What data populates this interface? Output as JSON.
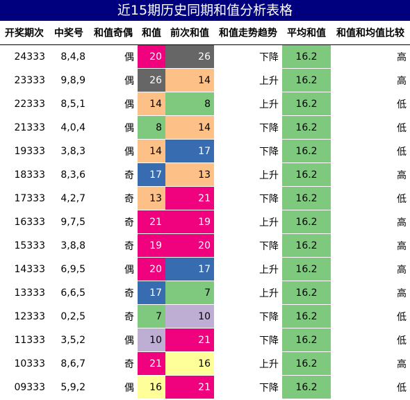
{
  "title": "近15期历史同期和值分析表格",
  "headers": [
    "开奖期次",
    "中奖号",
    "和值奇偶",
    "和值",
    "前次和值",
    "和值走势趋势",
    "平均和值",
    "和值和均值比较"
  ],
  "palette": {
    "7": "#7fc97f",
    "8": "#7fc97f",
    "10": "#beaed4",
    "13": "#fdc086",
    "14": "#fdc086",
    "16": "#ffff99",
    "17": "#386cb0",
    "19": "#f0027f",
    "20": "#f0027f",
    "21": "#f0027f",
    "26": "#666666"
  },
  "dark_values": [
    "17",
    "19",
    "20",
    "21",
    "26"
  ],
  "rows": [
    {
      "issue": "24333",
      "numbers": "8,4,8",
      "parity": "偶",
      "sum": "20",
      "prev_sum": "26",
      "trend": "下降",
      "avg": "16.2",
      "compare": "高"
    },
    {
      "issue": "23333",
      "numbers": "9,8,9",
      "parity": "偶",
      "sum": "26",
      "prev_sum": "14",
      "trend": "上升",
      "avg": "16.2",
      "compare": "高"
    },
    {
      "issue": "22333",
      "numbers": "8,5,1",
      "parity": "偶",
      "sum": "14",
      "prev_sum": "8",
      "trend": "上升",
      "avg": "16.2",
      "compare": "低"
    },
    {
      "issue": "21333",
      "numbers": "4,0,4",
      "parity": "偶",
      "sum": "8",
      "prev_sum": "14",
      "trend": "下降",
      "avg": "16.2",
      "compare": "低"
    },
    {
      "issue": "19333",
      "numbers": "3,8,3",
      "parity": "偶",
      "sum": "14",
      "prev_sum": "17",
      "trend": "下降",
      "avg": "16.2",
      "compare": "低"
    },
    {
      "issue": "18333",
      "numbers": "8,3,6",
      "parity": "奇",
      "sum": "17",
      "prev_sum": "13",
      "trend": "上升",
      "avg": "16.2",
      "compare": "高"
    },
    {
      "issue": "17333",
      "numbers": "4,2,7",
      "parity": "奇",
      "sum": "13",
      "prev_sum": "21",
      "trend": "下降",
      "avg": "16.2",
      "compare": "低"
    },
    {
      "issue": "16333",
      "numbers": "9,7,5",
      "parity": "奇",
      "sum": "21",
      "prev_sum": "19",
      "trend": "上升",
      "avg": "16.2",
      "compare": "高"
    },
    {
      "issue": "15333",
      "numbers": "3,8,8",
      "parity": "奇",
      "sum": "19",
      "prev_sum": "20",
      "trend": "下降",
      "avg": "16.2",
      "compare": "高"
    },
    {
      "issue": "14333",
      "numbers": "6,9,5",
      "parity": "偶",
      "sum": "20",
      "prev_sum": "17",
      "trend": "上升",
      "avg": "16.2",
      "compare": "高"
    },
    {
      "issue": "13333",
      "numbers": "6,6,5",
      "parity": "奇",
      "sum": "17",
      "prev_sum": "7",
      "trend": "上升",
      "avg": "16.2",
      "compare": "高"
    },
    {
      "issue": "12333",
      "numbers": "0,2,5",
      "parity": "奇",
      "sum": "7",
      "prev_sum": "10",
      "trend": "下降",
      "avg": "16.2",
      "compare": "低"
    },
    {
      "issue": "11333",
      "numbers": "3,5,2",
      "parity": "偶",
      "sum": "10",
      "prev_sum": "21",
      "trend": "下降",
      "avg": "16.2",
      "compare": "低"
    },
    {
      "issue": "10333",
      "numbers": "8,6,7",
      "parity": "奇",
      "sum": "21",
      "prev_sum": "16",
      "trend": "上升",
      "avg": "16.2",
      "compare": "高"
    },
    {
      "issue": "09333",
      "numbers": "5,9,2",
      "parity": "偶",
      "sum": "16",
      "prev_sum": "21",
      "trend": "下降",
      "avg": "16.2",
      "compare": "低"
    }
  ]
}
